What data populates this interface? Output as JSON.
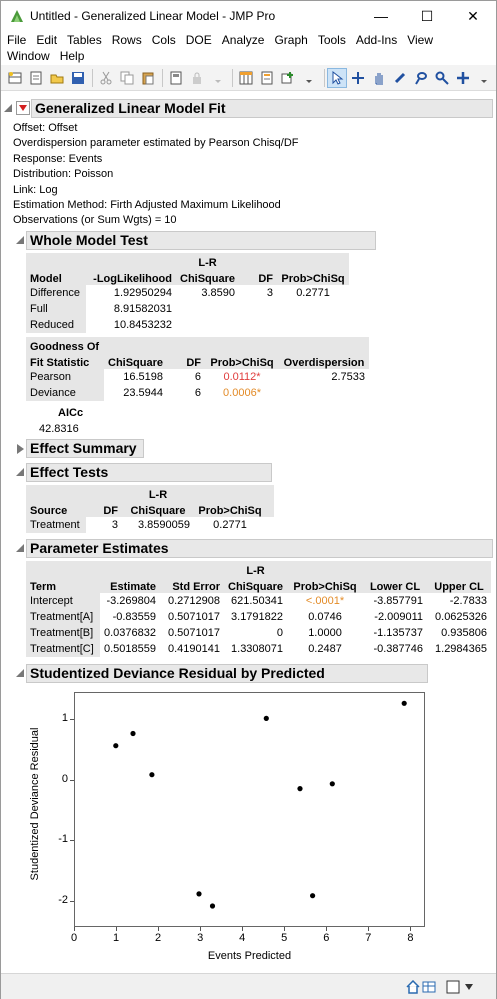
{
  "window": {
    "title": "Untitled - Generalized Linear Model - JMP Pro"
  },
  "menu": [
    "File",
    "Edit",
    "Tables",
    "Rows",
    "Cols",
    "DOE",
    "Analyze",
    "Graph",
    "Tools",
    "Add-Ins",
    "View",
    "Window",
    "Help"
  ],
  "report": {
    "title": "Generalized Linear Model Fit",
    "info": [
      "Offset: Offset",
      "Overdispersion parameter estimated by Pearson Chisq/DF",
      "Response: Events",
      "Distribution: Poisson",
      "Link: Log",
      "Estimation Method: Firth Adjusted Maximum Likelihood",
      "Observations (or Sum Wgts) = 10"
    ]
  },
  "whole_model": {
    "title": "Whole Model Test",
    "headers": {
      "model": "Model",
      "loglik": "-LogLikelihood",
      "lr_top": "L-R",
      "lr_bot": "ChiSquare",
      "df": "DF",
      "prob": "Prob>ChiSq"
    },
    "rows": [
      {
        "label": "Difference",
        "loglik": "1.92950294",
        "chisq": "3.8590",
        "df": "3",
        "prob": "0.2771"
      },
      {
        "label": "Full",
        "loglik": "8.91582031"
      },
      {
        "label": "Reduced",
        "loglik": "10.8453232"
      }
    ],
    "gof": {
      "h1": "Goodness Of",
      "h2": "Fit Statistic",
      "chisq": "ChiSquare",
      "df": "DF",
      "prob": "Prob>ChiSq",
      "over": "Overdispersion",
      "rows": [
        {
          "label": "Pearson",
          "chisq": "16.5198",
          "df": "6",
          "prob": "0.0112*",
          "over": "2.7533"
        },
        {
          "label": "Deviance",
          "chisq": "23.5944",
          "df": "6",
          "prob": "0.0006*"
        }
      ]
    },
    "aicc_label": "AICc",
    "aicc_value": "42.8316"
  },
  "effect_summary": {
    "title": "Effect Summary"
  },
  "effect_tests": {
    "title": "Effect Tests",
    "headers": {
      "source": "Source",
      "df": "DF",
      "lr_top": "L-R",
      "lr_bot": "ChiSquare",
      "prob": "Prob>ChiSq"
    },
    "rows": [
      {
        "source": "Treatment",
        "df": "3",
        "chisq": "3.8590059",
        "prob": "0.2771"
      }
    ]
  },
  "param_est": {
    "title": "Parameter Estimates",
    "headers": {
      "term": "Term",
      "est": "Estimate",
      "se": "Std Error",
      "lr_top": "L-R",
      "lr_bot": "ChiSquare",
      "prob": "Prob>ChiSq",
      "lcl": "Lower CL",
      "ucl": "Upper CL"
    },
    "rows": [
      {
        "term": "Intercept",
        "est": "-3.269804",
        "se": "0.2712908",
        "chisq": "621.50341",
        "prob": "<.0001*",
        "lcl": "-3.857791",
        "ucl": "-2.7833"
      },
      {
        "term": "Treatment[A]",
        "est": "-0.83559",
        "se": "0.5071017",
        "chisq": "3.1791822",
        "prob": "0.0746",
        "lcl": "-2.009011",
        "ucl": "0.0625326"
      },
      {
        "term": "Treatment[B]",
        "est": "0.0376832",
        "se": "0.5071017",
        "chisq": "0",
        "prob": "1.0000",
        "lcl": "-1.135737",
        "ucl": "0.935806"
      },
      {
        "term": "Treatment[C]",
        "est": "0.5018559",
        "se": "0.4190141",
        "chisq": "1.3308071",
        "prob": "0.2487",
        "lcl": "-0.387746",
        "ucl": "1.2984365"
      }
    ]
  },
  "residual_plot": {
    "title": "Studentized Deviance Residual by Predicted"
  },
  "chart_data": {
    "type": "scatter",
    "title": "Studentized Deviance Residual by Predicted",
    "xlabel": "Events Predicted",
    "ylabel": "Studentized Deviance Residual",
    "xlim": [
      0,
      8.3
    ],
    "ylim": [
      -2.4,
      1.45
    ],
    "xticks": [
      "0",
      "1",
      "2",
      "3",
      "4",
      "5",
      "6",
      "7",
      "8"
    ],
    "yticks": [
      "1",
      "0",
      "-1",
      "-2"
    ],
    "x": [
      0.97,
      1.38,
      1.83,
      2.95,
      3.27,
      4.55,
      5.35,
      5.65,
      6.12,
      7.83
    ],
    "y": [
      0.58,
      0.78,
      0.1,
      -1.87,
      -2.07,
      1.03,
      -0.13,
      -1.9,
      -0.05,
      1.28
    ]
  },
  "colors": {
    "significant": "#e03c3c",
    "highly_significant": "#e38b27",
    "header_bg": "#e6e6e6",
    "outline_bg": "#e8e8e8"
  }
}
